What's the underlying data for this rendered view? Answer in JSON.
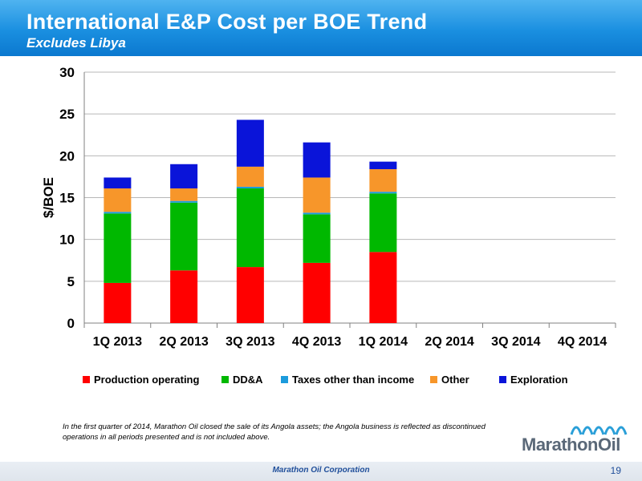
{
  "header": {
    "title": "International E&P Cost per BOE Trend",
    "subtitle": "Excludes Libya"
  },
  "chart_data": {
    "type": "bar",
    "stacked": true,
    "ylabel": "$/BOE",
    "ylim": [
      0,
      30
    ],
    "yticks": [
      0,
      5,
      10,
      15,
      20,
      25,
      30
    ],
    "grid": true,
    "legend_position": "bottom",
    "categories": [
      "1Q 2013",
      "2Q 2013",
      "3Q 2013",
      "4Q 2013",
      "1Q 2014",
      "2Q 2014",
      "3Q 2014",
      "4Q 2014"
    ],
    "series": [
      {
        "name": "Production operating",
        "color": "#ff0000",
        "values": [
          4.8,
          6.3,
          6.7,
          7.2,
          8.5,
          null,
          null,
          null
        ]
      },
      {
        "name": "DD&A",
        "color": "#00b800",
        "values": [
          8.3,
          8.1,
          9.4,
          5.8,
          7.0,
          null,
          null,
          null
        ]
      },
      {
        "name": "Taxes other than income",
        "color": "#1c9bdc",
        "values": [
          0.2,
          0.2,
          0.2,
          0.2,
          0.2,
          null,
          null,
          null
        ]
      },
      {
        "name": "Other",
        "color": "#f7962a",
        "values": [
          2.8,
          1.5,
          2.4,
          4.2,
          2.7,
          null,
          null,
          null
        ]
      },
      {
        "name": "Exploration",
        "color": "#0a14d9",
        "values": [
          1.3,
          2.9,
          5.6,
          4.2,
          0.9,
          null,
          null,
          null
        ]
      }
    ]
  },
  "note": "In the first quarter of 2014, Marathon Oil closed the sale of its Angola assets; the Angola business is reflected as discontinued operations in all periods presented and is not included above.",
  "logo": {
    "text": "MarathonOil"
  },
  "footer": {
    "text": "Marathon Oil Corporation",
    "page": "19"
  }
}
